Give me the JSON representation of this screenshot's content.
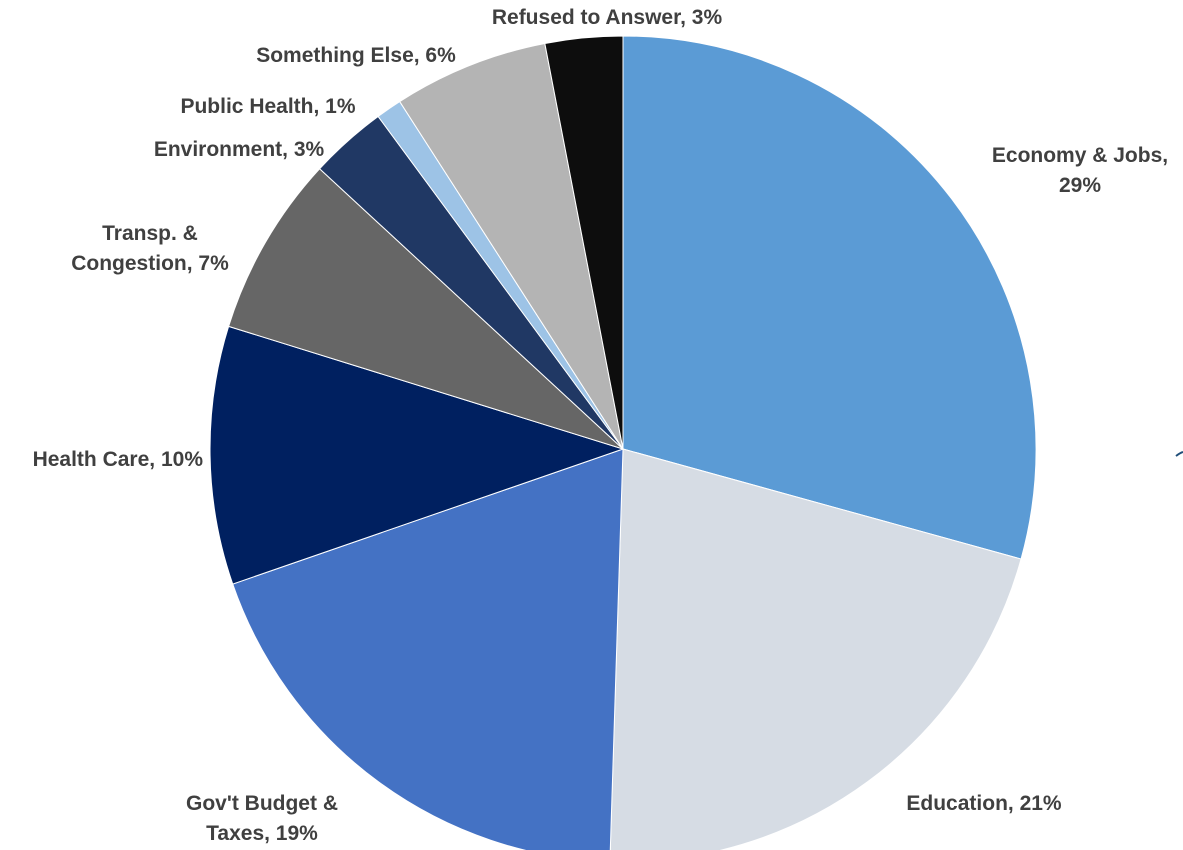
{
  "chart_data": {
    "type": "pie",
    "title": "",
    "slices": [
      {
        "label_lines": [
          "Economy & Jobs,",
          "29%"
        ],
        "category": "Economy & Jobs",
        "value": 29,
        "color": "#5b9bd5"
      },
      {
        "label_lines": [
          "Education, 21%"
        ],
        "category": "Education",
        "value": 21,
        "color": "#d6dce4"
      },
      {
        "label_lines": [
          "Gov't Budget &",
          "Taxes, 19%"
        ],
        "category": "Gov't Budget & Taxes",
        "value": 19,
        "color": "#4472c4"
      },
      {
        "label_lines": [
          "Health Care, 10%"
        ],
        "category": "Health Care",
        "value": 10,
        "color": "#002060"
      },
      {
        "label_lines": [
          "Transp. &",
          "Congestion, 7%"
        ],
        "category": "Transp. & Congestion",
        "value": 7,
        "color": "#666666"
      },
      {
        "label_lines": [
          "Environment, 3%"
        ],
        "category": "Environment",
        "value": 3,
        "color": "#203864"
      },
      {
        "label_lines": [
          "Public Health, 1%"
        ],
        "category": "Public Health",
        "value": 1,
        "color": "#9dc3e6"
      },
      {
        "label_lines": [
          "Something Else, 6%"
        ],
        "category": "Something Else",
        "value": 6,
        "color": "#b4b4b4"
      },
      {
        "label_lines": [
          "Refused to Answer, 3%"
        ],
        "category": "Refused to Answer",
        "value": 3,
        "color": "#0d0d0d"
      }
    ],
    "start_angle_deg": 0,
    "direction": "clockwise",
    "legend": "none",
    "data_labels": "outside, category and percent"
  }
}
